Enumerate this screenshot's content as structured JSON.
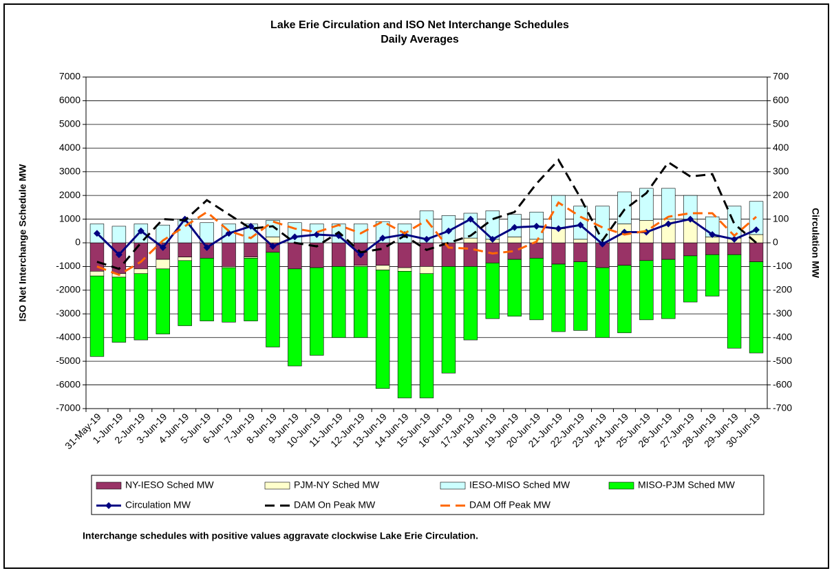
{
  "chart_data": {
    "type": "bar-line",
    "title": "Lake Erie Circulation and ISO Net Interchange Schedules",
    "subtitle": "Daily Averages",
    "y_label": "ISO Net Interchange Schedule MW",
    "y2_label": "Circulation MW",
    "note": "Interchange schedules with positive values aggravate clockwise Lake Erie Circulation.",
    "categories": [
      "31-May-19",
      "1-Jun-19",
      "2-Jun-19",
      "3-Jun-19",
      "4-Jun-19",
      "5-Jun-19",
      "6-Jun-19",
      "7-Jun-19",
      "8-Jun-19",
      "9-Jun-19",
      "10-Jun-19",
      "11-Jun-19",
      "12-Jun-19",
      "13-Jun-19",
      "14-Jun-19",
      "15-Jun-19",
      "16-Jun-19",
      "17-Jun-19",
      "18-Jun-19",
      "19-Jun-19",
      "20-Jun-19",
      "21-Jun-19",
      "22-Jun-19",
      "23-Jun-19",
      "24-Jun-19",
      "25-Jun-19",
      "26-Jun-19",
      "27-Jun-19",
      "28-Jun-19",
      "29-Jun-19",
      "30-Jun-19"
    ],
    "ylim": [
      -7000,
      7000
    ],
    "yticks": [
      -7000,
      -6000,
      -5000,
      -4000,
      -3000,
      -2000,
      -1000,
      0,
      1000,
      2000,
      3000,
      4000,
      5000,
      6000,
      7000
    ],
    "y2lim": [
      -700,
      700
    ],
    "y2ticks": [
      -700,
      -600,
      -500,
      -400,
      -300,
      -200,
      -100,
      0,
      100,
      200,
      300,
      400,
      500,
      600,
      700
    ],
    "grid": true,
    "series": [
      {
        "name": "NY-IESO Sched MW",
        "type": "bar",
        "color": "#993366",
        "values": [
          -1200,
          -1300,
          -1100,
          -700,
          -600,
          -650,
          -1000,
          -600,
          -400,
          -1100,
          -1050,
          -1000,
          -950,
          -950,
          -1050,
          -1000,
          -1000,
          -1000,
          -850,
          -700,
          -650,
          -900,
          -800,
          -1050,
          -950,
          -750,
          -700,
          -550,
          -500,
          -500,
          -800
        ]
      },
      {
        "name": "PJM-NY Sched MW",
        "type": "bar",
        "color": "#ffffcc",
        "values": [
          -200,
          -150,
          -200,
          -400,
          -150,
          0,
          -50,
          -50,
          250,
          0,
          0,
          0,
          -50,
          -200,
          -150,
          -300,
          0,
          200,
          150,
          250,
          150,
          600,
          150,
          0,
          800,
          950,
          1000,
          1000,
          250,
          200,
          350
        ]
      },
      {
        "name": "IESO-MISO Sched MW",
        "type": "bar",
        "color": "#ccffff",
        "values": [
          800,
          700,
          800,
          750,
          1000,
          850,
          800,
          800,
          700,
          850,
          800,
          800,
          800,
          900,
          800,
          1350,
          1150,
          1050,
          1200,
          950,
          1150,
          1400,
          1400,
          1550,
          1350,
          1350,
          1300,
          1000,
          850,
          1350,
          1400
        ]
      },
      {
        "name": "MISO-PJM Sched MW",
        "type": "bar",
        "color": "#00ff00",
        "values": [
          -3400,
          -2750,
          -2800,
          -2750,
          -2750,
          -2650,
          -2300,
          -2650,
          -4000,
          -4100,
          -3700,
          -3000,
          -3000,
          -5000,
          -5350,
          -5250,
          -4500,
          -3100,
          -2350,
          -2400,
          -2600,
          -2850,
          -2900,
          -2950,
          -2850,
          -2500,
          -2500,
          -1950,
          -1750,
          -3950,
          -3850
        ]
      },
      {
        "name": "Circulation MW",
        "type": "line",
        "axis": "y2",
        "color": "#000080",
        "line_style": "solid",
        "marker": "diamond",
        "values": [
          40,
          -50,
          50,
          -20,
          100,
          -20,
          40,
          70,
          -15,
          25,
          35,
          30,
          -50,
          20,
          35,
          15,
          50,
          100,
          15,
          65,
          70,
          60,
          75,
          -5,
          45,
          45,
          80,
          100,
          35,
          15,
          55
        ]
      },
      {
        "name": "DAM On Peak MW",
        "type": "line",
        "axis": "y2",
        "color": "#000000",
        "line_style": "dash",
        "values": [
          -80,
          -110,
          0,
          100,
          95,
          180,
          120,
          60,
          70,
          0,
          -15,
          45,
          -40,
          -25,
          30,
          -30,
          0,
          30,
          100,
          130,
          250,
          350,
          190,
          10,
          140,
          210,
          340,
          280,
          290,
          80,
          0
        ]
      },
      {
        "name": "DAM Off Peak MW",
        "type": "line",
        "axis": "y2",
        "color": "#ff6600",
        "line_style": "dash",
        "values": [
          -100,
          -135,
          -80,
          10,
          70,
          130,
          50,
          20,
          90,
          60,
          45,
          75,
          40,
          90,
          40,
          95,
          -20,
          -25,
          -45,
          -35,
          5,
          170,
          110,
          65,
          35,
          50,
          110,
          125,
          125,
          30,
          110
        ]
      }
    ]
  }
}
